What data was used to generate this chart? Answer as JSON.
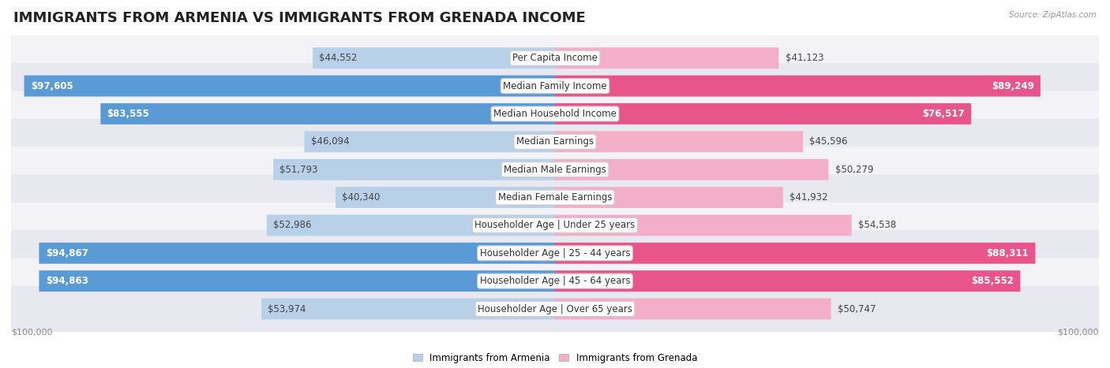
{
  "title": "IMMIGRANTS FROM ARMENIA VS IMMIGRANTS FROM GRENADA INCOME",
  "source": "Source: ZipAtlas.com",
  "categories": [
    "Per Capita Income",
    "Median Family Income",
    "Median Household Income",
    "Median Earnings",
    "Median Male Earnings",
    "Median Female Earnings",
    "Householder Age | Under 25 years",
    "Householder Age | 25 - 44 years",
    "Householder Age | 45 - 64 years",
    "Householder Age | Over 65 years"
  ],
  "armenia_values": [
    44552,
    97605,
    83555,
    46094,
    51793,
    40340,
    52986,
    94867,
    94863,
    53974
  ],
  "grenada_values": [
    41123,
    89249,
    76517,
    45596,
    50279,
    41932,
    54538,
    88311,
    85552,
    50747
  ],
  "armenia_color_light": "#b8d0e8",
  "armenia_color_dark": "#5b9bd5",
  "grenada_color_light": "#f4afc8",
  "grenada_color_dark": "#e8558a",
  "row_bg_color_odd": "#f2f2f7",
  "row_bg_color_even": "#e8e8f0",
  "max_value": 100000,
  "legend_armenia": "Immigrants from Armenia",
  "legend_grenada": "Immigrants from Grenada",
  "title_fontsize": 13,
  "label_fontsize": 8.5,
  "value_fontsize": 8.5,
  "axis_fontsize": 8,
  "inside_threshold": 0.72,
  "axis_label": "$100,000"
}
